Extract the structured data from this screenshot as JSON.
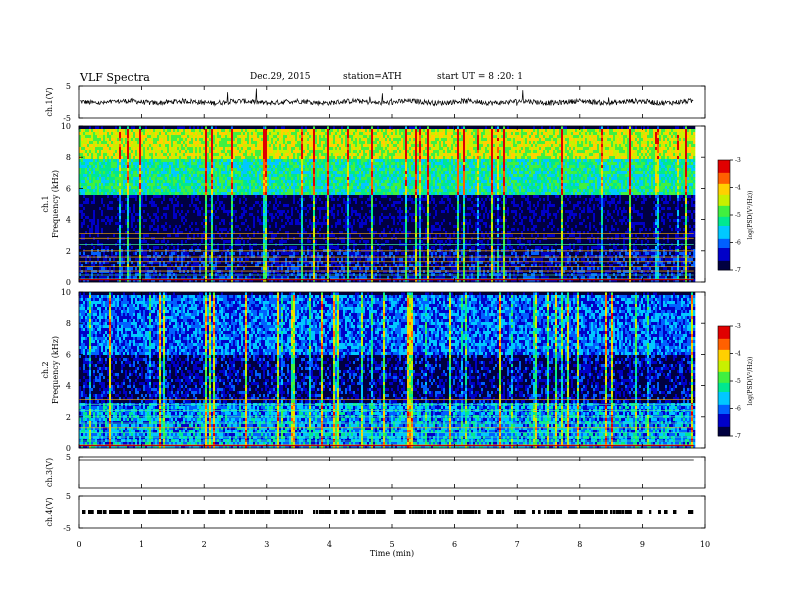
{
  "header": {
    "title": "VLF Spectra",
    "date": "Dec.29, 2015",
    "station": "station=ATH",
    "start": "start UT =  8 :20: 1"
  },
  "chart_data": [
    {
      "type": "line",
      "title": "",
      "ylabel": "ch.1(V)",
      "ylim": [
        -5,
        5
      ],
      "yticks": [
        "5",
        "-5"
      ],
      "description_values": "noisy signal near 0 V, occasional spikes to about +4 and -1",
      "baseline": 0
    },
    {
      "type": "heatmap",
      "ylabel": "ch.1\nFrequency (kHz)",
      "ylabel_top": "ch.1",
      "ylabel_bottom": "Frequency (kHz)",
      "ylim": [
        0,
        10
      ],
      "yticks": [
        "0",
        "2",
        "4",
        "6",
        "8",
        "10"
      ],
      "colorbar": {
        "label": "log(PSD(V²/Hz))",
        "range": [
          -7,
          -3
        ],
        "ticks": [
          "-3",
          "-4",
          "-5",
          "-6",
          "-7"
        ]
      },
      "bands": [
        {
          "from": 0,
          "to": 2.2,
          "level": -6.5
        },
        {
          "from": 2.2,
          "to": 5.6,
          "level": -6.8
        },
        {
          "from": 5.6,
          "to": 8,
          "level": -5.2
        },
        {
          "from": 8,
          "to": 10,
          "level": -4.4
        }
      ]
    },
    {
      "type": "heatmap",
      "ylabel": "ch.2\nFrequency (kHz)",
      "ylabel_top": "ch.2",
      "ylabel_bottom": "Frequency (kHz)",
      "ylim": [
        0,
        10
      ],
      "yticks": [
        "0",
        "2",
        "4",
        "6",
        "8",
        "10"
      ],
      "colorbar": {
        "label": "log(PSD(V²/Hz))",
        "range": [
          -7,
          -3
        ],
        "ticks": [
          "-3",
          "-4",
          "-5",
          "-6",
          "-7"
        ]
      },
      "bands": [
        {
          "from": 0,
          "to": 3,
          "level": -5.8
        },
        {
          "from": 3,
          "to": 6,
          "level": -6.6
        },
        {
          "from": 6,
          "to": 10,
          "level": -6.0
        }
      ]
    },
    {
      "type": "line",
      "ylabel": "ch.3(V)",
      "ylim": [
        -5,
        5
      ],
      "yticks": [
        "5"
      ],
      "baseline": 5
    },
    {
      "type": "line",
      "ylabel": "ch.4(V)",
      "ylim": [
        -5,
        5
      ],
      "yticks": [
        "5",
        "-5"
      ],
      "baseline": 0
    }
  ],
  "xaxis": {
    "label": "Time  (min)",
    "xlim": [
      0,
      10
    ],
    "ticks": [
      "0",
      "1",
      "2",
      "3",
      "4",
      "5",
      "6",
      "7",
      "8",
      "9",
      "10"
    ]
  },
  "colors": {
    "scale": [
      "#000040",
      "#0000c8",
      "#0060ff",
      "#00c8ff",
      "#00e890",
      "#40f040",
      "#c8f000",
      "#ffd000",
      "#ff6000",
      "#e00000",
      "#ffffff"
    ]
  }
}
